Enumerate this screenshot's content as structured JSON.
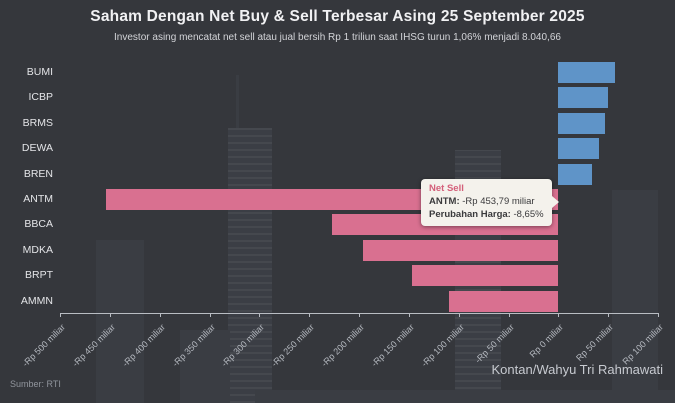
{
  "chart_data": {
    "type": "bar",
    "orientation": "horizontal",
    "title": "Saham Dengan Net Buy & Sell Terbesar Asing 25 September 2025",
    "subtitle": "Investor asing mencatat net sell atau jual bersih Rp 1 triliun saat IHSG turun 1,06% menjadi 8.040,66",
    "categories": [
      "BUMI",
      "ICBP",
      "BRMS",
      "DEWA",
      "BREN",
      "ANTM",
      "BBCA",
      "MDKA",
      "BRPT",
      "AMMN"
    ],
    "values": [
      57,
      50,
      47,
      41,
      34,
      -453.79,
      -227,
      -196,
      -147,
      -110
    ],
    "value_unit": "Rp miliar",
    "xlim": [
      -500,
      100
    ],
    "tick_values": [
      -500,
      -450,
      -400,
      -350,
      -300,
      -250,
      -200,
      -150,
      -100,
      -50,
      0,
      50,
      100
    ],
    "tick_labels": [
      "-Rp 500 miliar",
      "-Rp 450 miliar",
      "-Rp 400 miliar",
      "-Rp 350 miliar",
      "-Rp 300 miliar",
      "-Rp 250 miliar",
      "-Rp 200 miliar",
      "-Rp 150 miliar",
      "-Rp 100 miliar",
      "-Rp 50 miliar",
      "Rp 0 miliar",
      "Rp 50 miliar",
      "Rp 100 miliar"
    ],
    "grid": false,
    "legend": "none"
  },
  "tooltip": {
    "header": "Net Sell",
    "stock_label": "ANTM:",
    "stock_value": " -Rp 453,79 miliar",
    "change_label": "Perubahan Harga:",
    "change_value": " -8,65%"
  },
  "footer": {
    "source": "Sumber: RTI",
    "credit": "Kontan/Wahyu Tri Rahmawati"
  },
  "colors": {
    "background": "#35373c",
    "net_buy": "#5f94c8",
    "net_sell": "#d97090",
    "axis": "#b9bdc3",
    "tooltip_header": "#d4607a"
  }
}
